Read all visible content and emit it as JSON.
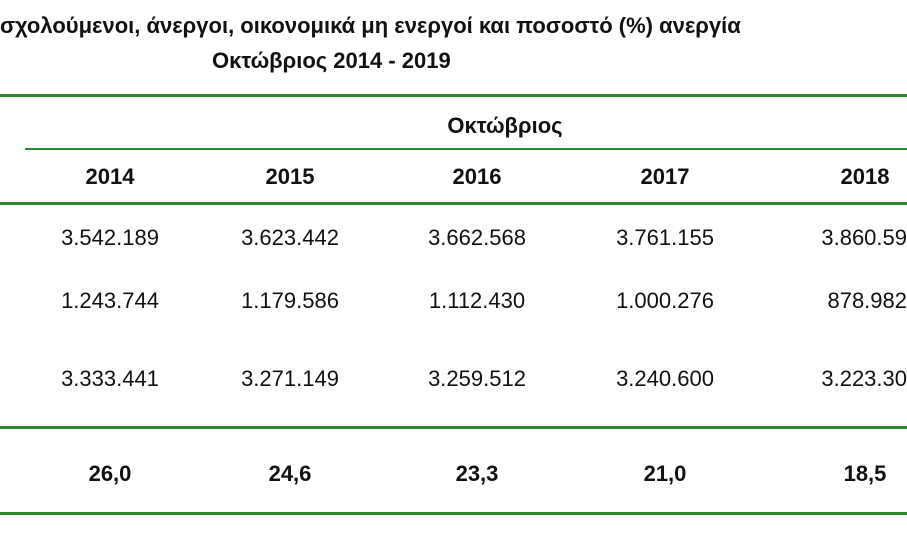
{
  "title": "σχολούμενοι, άνεργοι, οικονομικά μη ενεργοί και ποσοστό (%) ανεργία",
  "subtitle": "Οκτώβριος 2014 - 2019",
  "group_header": "Οκτώβριος",
  "years": [
    "2014",
    "2015",
    "2016",
    "2017",
    "2018"
  ],
  "rows": [
    [
      "3.542.189",
      "3.623.442",
      "3.662.568",
      "3.761.155",
      "3.860.59"
    ],
    [
      "1.243.744",
      "1.179.586",
      "1.112.430",
      "1.000.276",
      "878.982"
    ],
    [
      "3.333.441",
      "3.271.149",
      "3.259.512",
      "3.240.600",
      "3.223.30"
    ]
  ],
  "unemployment_rate": [
    "26,0",
    "24,6",
    "23,3",
    "21,0",
    "18,5"
  ],
  "colors": {
    "rule": "#2f8a2f"
  }
}
